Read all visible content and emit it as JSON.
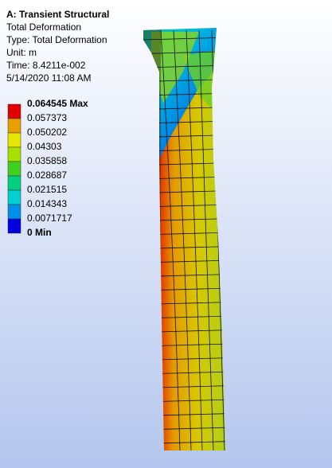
{
  "header": {
    "title": "A: Transient Structural",
    "lines": [
      "Total Deformation",
      "Type: Total Deformation",
      "Unit: m",
      "Time: 8.4211e-002",
      "5/14/2020 11:08 AM"
    ]
  },
  "legend": {
    "labels": [
      "0.064545 Max",
      "0.057373",
      "0.050202",
      "0.04303",
      "0.035858",
      "0.028687",
      "0.021515",
      "0.014343",
      "0.0071717",
      "0 Min"
    ],
    "colors": [
      "#e00000",
      "#e8a000",
      "#e6e600",
      "#a8e000",
      "#40d020",
      "#00d080",
      "#00d0d0",
      "#0090e8",
      "#0000e0"
    ]
  }
}
